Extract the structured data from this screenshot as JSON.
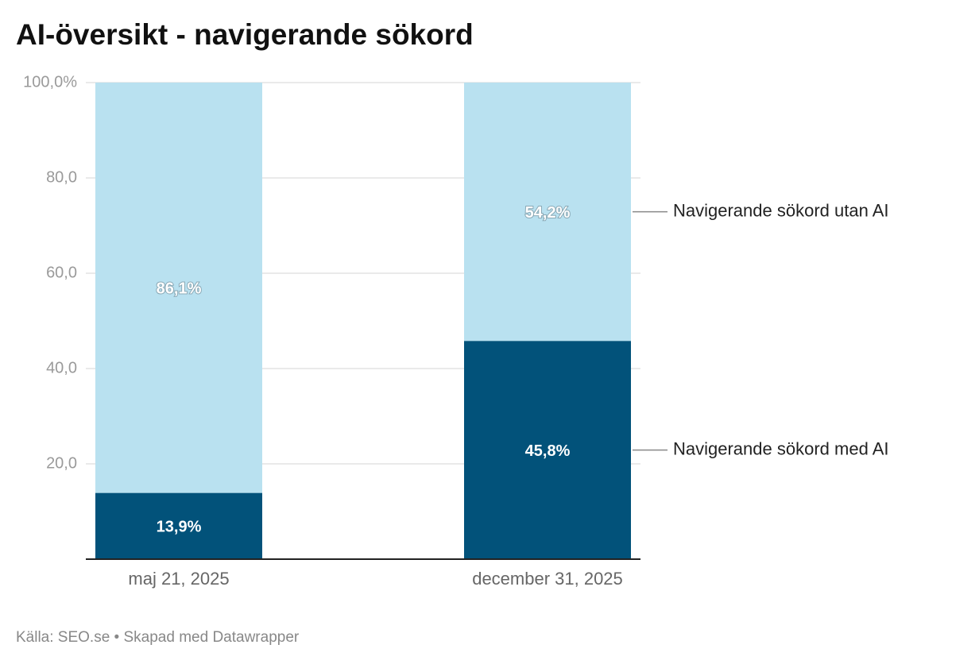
{
  "chart_data": {
    "type": "stacked_bar",
    "title": "AI-översikt - navigerande sökord",
    "source": "Källa: SEO.se • Skapad med Datawrapper",
    "categories": [
      "maj 21, 2025",
      "december 31, 2025"
    ],
    "series": [
      {
        "name": "Navigerande sökord med AI",
        "color": "#02527a",
        "values": [
          13.9,
          45.8
        ],
        "value_labels": [
          "13,9%",
          "45,8%"
        ]
      },
      {
        "name": "Navigerande sökord utan AI",
        "color": "#b9e1f0",
        "values": [
          86.1,
          54.2
        ],
        "value_labels": [
          "86,1%",
          "54,2%"
        ]
      }
    ],
    "ylim": [
      0,
      100
    ],
    "yticks": [
      {
        "value": 20,
        "label": "20,0"
      },
      {
        "value": 40,
        "label": "40,0"
      },
      {
        "value": 60,
        "label": "60,0"
      },
      {
        "value": 80,
        "label": "80,0"
      },
      {
        "value": 100,
        "label": "100,0%"
      }
    ],
    "grid": true
  }
}
